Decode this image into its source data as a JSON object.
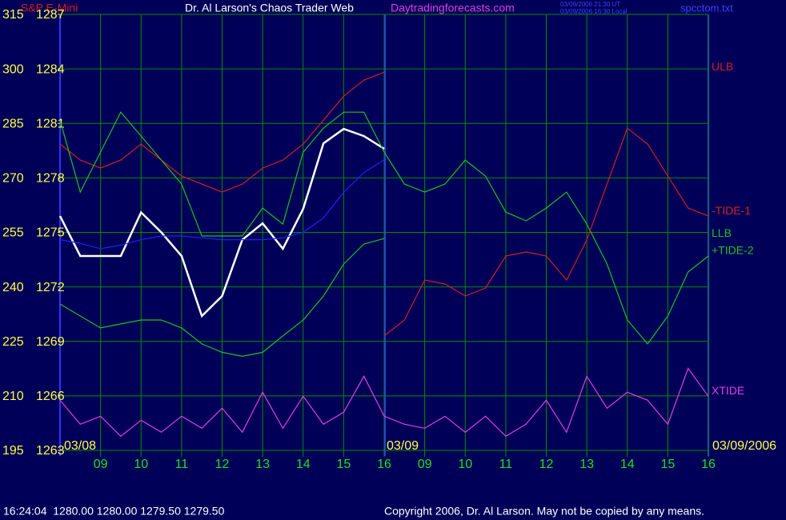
{
  "header": {
    "symbol": "S&P E-Mini",
    "site_title": "Dr. Al Larson's Chaos Trader Web",
    "site_url": "Daytradingforecasts.com",
    "time_ut": "03/09/2006 21:30 UT",
    "time_local": "03/09/2006 16:30 Local",
    "file": "spcctom.txt"
  },
  "footer": {
    "quote": "16:24:04  1280.00 1280.00 1279.50 1279.50",
    "copyright": "Copyright 2006, Dr. Al Larson. May not be copied by any means."
  },
  "chart_data": {
    "type": "line",
    "date_labels": [
      "03/08",
      "03/09",
      "03/09/2006"
    ],
    "categories": [
      null,
      null,
      "09",
      null,
      "10",
      null,
      "11",
      null,
      "12",
      null,
      "13",
      null,
      "14",
      null,
      "15",
      null,
      "16",
      null,
      "09",
      null,
      "10",
      null,
      "11",
      null,
      "12",
      null,
      "13",
      null,
      "14",
      null,
      "15",
      null,
      "16"
    ],
    "ylim": [
      195,
      315
    ],
    "yticks": [
      315,
      300,
      285,
      270,
      255,
      240,
      225,
      210,
      195
    ],
    "y2lim": [
      1263,
      1287
    ],
    "y2ticks": [
      1287,
      1284,
      1281,
      1278,
      1275,
      1272,
      1269,
      1266,
      1263
    ],
    "grid": true,
    "series": [
      {
        "color": "#ffffff",
        "axis": "y2",
        "values": [
          1275.9,
          1273.7,
          1273.7,
          1273.7,
          1276.1,
          1275.0,
          1273.7,
          1270.4,
          1271.5,
          1274.6,
          1275.5,
          1274.1,
          1276.3,
          1279.9,
          1280.7,
          1280.3,
          1279.6,
          null,
          null,
          null,
          null,
          null,
          null,
          null,
          null,
          null,
          null,
          null,
          null,
          null,
          null,
          null,
          null
        ]
      },
      {
        "color": "#2020ff",
        "axis": "y2",
        "values": [
          1274.6,
          1274.4,
          1274.1,
          1274.3,
          1274.6,
          1274.8,
          1274.8,
          1274.7,
          1274.6,
          1274.6,
          1274.6,
          1274.7,
          1275.0,
          1275.8,
          1277.2,
          1278.3,
          1279.0,
          null,
          null,
          null,
          null,
          null,
          null,
          null,
          null,
          null,
          null,
          null,
          null,
          null,
          null,
          null,
          null
        ]
      },
      {
        "name": "ULB",
        "color": "#d02020",
        "values": [
          279.3,
          274.9,
          272.7,
          274.9,
          279.3,
          274.9,
          270.5,
          268.3,
          266.1,
          268.3,
          272.7,
          274.9,
          279.3,
          285.9,
          292.5,
          296.9,
          299.1,
          null,
          null,
          null,
          null,
          null,
          null,
          null,
          null,
          null,
          null,
          null,
          null,
          null,
          null,
          null,
          null
        ]
      },
      {
        "name": "+TIDE-2",
        "color": "#20c020",
        "values": [
          285.9,
          266.1,
          277.1,
          288.1,
          281.5,
          274.9,
          268.3,
          254.0,
          254.0,
          254.0,
          261.7,
          257.3,
          277.1,
          283.7,
          288.1,
          288.1,
          277.1,
          268.3,
          266.1,
          268.3,
          274.9,
          270.5,
          260.6,
          258.2,
          261.7,
          266.1,
          257.3,
          246.3,
          230.9,
          224.3,
          232.0,
          244.1,
          248.5
        ]
      },
      {
        "name": "-TIDE-1",
        "color": "#d02020",
        "values": [
          null,
          null,
          null,
          null,
          null,
          null,
          null,
          null,
          null,
          null,
          null,
          null,
          null,
          null,
          null,
          null,
          226.5,
          230.9,
          241.9,
          240.8,
          237.5,
          239.7,
          248.5,
          249.6,
          248.5,
          241.9,
          252.9,
          268.3,
          283.7,
          279.3,
          270.5,
          261.7,
          259.5
        ]
      },
      {
        "name": "LLB",
        "color": "#20c020",
        "values": [
          235.3,
          232.0,
          228.7,
          229.8,
          230.9,
          230.9,
          228.7,
          224.3,
          222.0,
          220.9,
          222.0,
          226.5,
          230.9,
          237.5,
          246.3,
          251.8,
          253.3,
          null,
          null,
          null,
          null,
          null,
          null,
          null,
          null,
          null,
          null,
          null,
          null,
          null,
          null,
          null,
          null
        ]
      },
      {
        "name": "XTIDE",
        "color": "#e040e0",
        "values": [
          208.8,
          202.2,
          204.4,
          198.9,
          203.3,
          200.0,
          204.4,
          201.1,
          206.6,
          200.0,
          211.0,
          201.1,
          209.9,
          202.2,
          205.5,
          215.4,
          204.4,
          202.2,
          201.1,
          204.4,
          200.0,
          204.4,
          198.9,
          202.2,
          208.8,
          200.0,
          215.4,
          206.6,
          211.0,
          208.8,
          202.2,
          217.6,
          209.9
        ]
      }
    ]
  }
}
